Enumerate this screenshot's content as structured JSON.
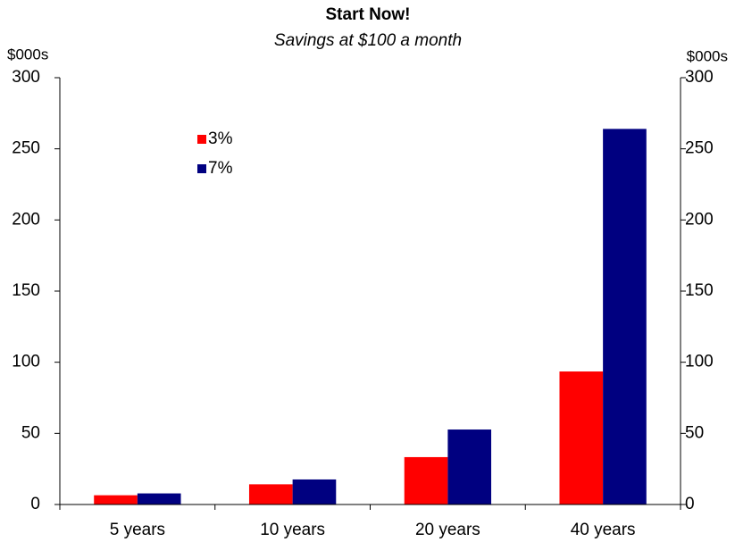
{
  "chart_data": {
    "type": "bar",
    "title": "Start Now!",
    "subtitle": "Savings at $100 a month",
    "y_label": "$000s",
    "y2_label": "$000s",
    "categories": [
      "5 years",
      "10 years",
      "20 years",
      "40 years"
    ],
    "series": [
      {
        "name": "3%",
        "color": "#ff0000",
        "values": [
          6.5,
          14.2,
          33.3,
          93.5
        ]
      },
      {
        "name": "7%",
        "color": "#000080",
        "values": [
          7.8,
          17.6,
          52.7,
          264
        ]
      }
    ],
    "ylim": [
      0,
      300
    ],
    "yticks": [
      0,
      50,
      100,
      150,
      200,
      250,
      300
    ],
    "y2lim": [
      0,
      300
    ],
    "y2ticks": [
      0,
      50,
      100,
      150,
      200,
      250,
      300
    ],
    "grid": false,
    "legend": "upper left"
  }
}
